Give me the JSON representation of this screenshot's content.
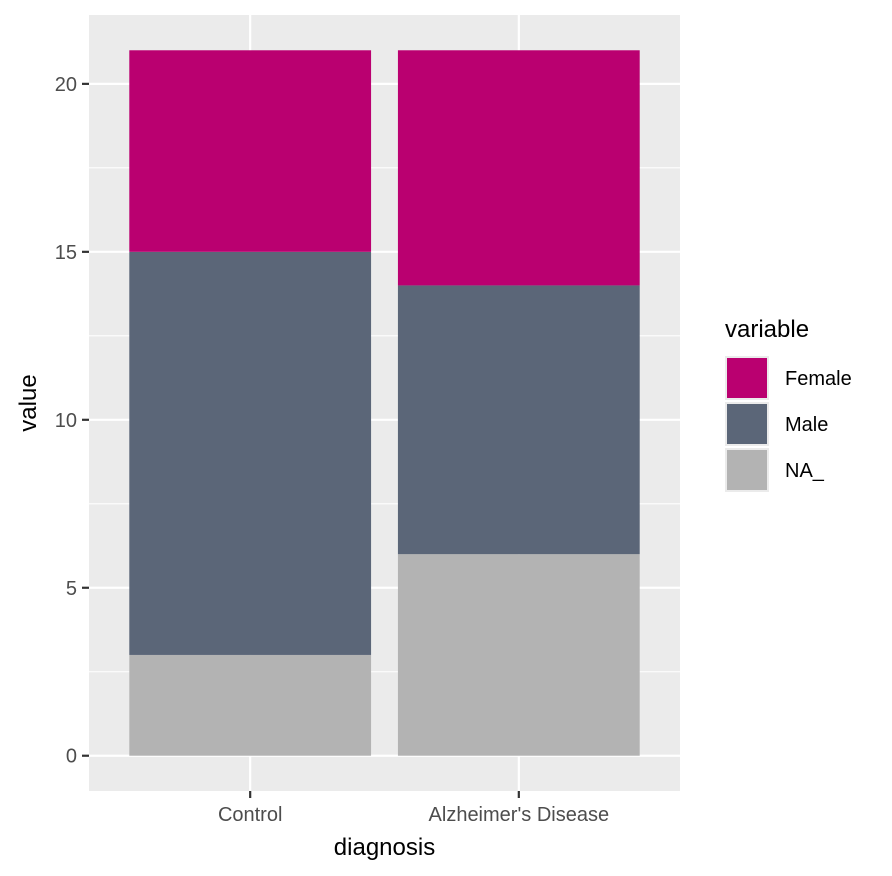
{
  "chart_data": {
    "type": "bar",
    "stacked": true,
    "categories": [
      "Control",
      "Alzheimer's Disease"
    ],
    "series": [
      {
        "name": "NA_",
        "values": [
          3,
          6
        ],
        "color": "#B3B3B3"
      },
      {
        "name": "Male",
        "values": [
          12,
          8
        ],
        "color": "#5B6678"
      },
      {
        "name": "Female",
        "values": [
          6,
          7
        ],
        "color": "#BA0070"
      }
    ],
    "legend_order": [
      "Female",
      "Male",
      "NA_"
    ],
    "title": "",
    "xlabel": "diagnosis",
    "ylabel": "value",
    "ylim": [
      -1.05,
      22.05
    ],
    "yticks": [
      0,
      5,
      10,
      15,
      20
    ],
    "legend_title": "variable",
    "legend_position": "right",
    "grid": true,
    "panel_background": "#EBEBEB",
    "grid_color": "#FFFFFF"
  }
}
